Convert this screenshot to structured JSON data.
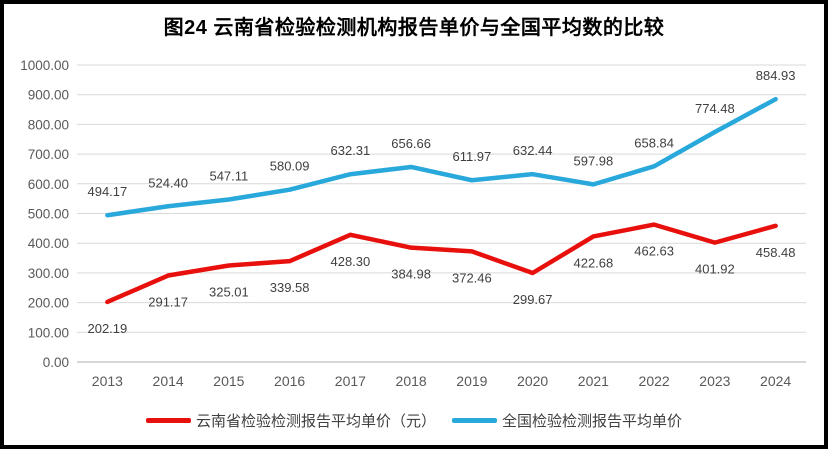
{
  "chart_data": {
    "type": "line",
    "title": "图24 云南省检验检测机构报告单价与全国平均数的比较",
    "categories": [
      "2013",
      "2014",
      "2015",
      "2016",
      "2017",
      "2018",
      "2019",
      "2020",
      "2021",
      "2022",
      "2023",
      "2024"
    ],
    "series": [
      {
        "name": "云南省检验检测报告平均单价（元）",
        "color": "#e8100c",
        "label_position": "below",
        "values": [
          202.19,
          291.17,
          325.01,
          339.58,
          428.3,
          384.98,
          372.46,
          299.67,
          422.68,
          462.63,
          401.92,
          458.48
        ]
      },
      {
        "name": "全国检验检测报告平均单价",
        "color": "#29a8dc",
        "label_position": "above",
        "values": [
          494.17,
          524.4,
          547.11,
          580.09,
          632.31,
          656.66,
          611.97,
          632.44,
          597.98,
          658.84,
          774.48,
          884.93
        ]
      }
    ],
    "xlabel": "",
    "ylabel": "",
    "ylim": [
      0,
      1000
    ],
    "yticks": [
      0,
      100,
      200,
      300,
      400,
      500,
      600,
      700,
      800,
      900,
      1000
    ],
    "ytick_decimals": 2,
    "grid": true,
    "legend_position": "bottom",
    "data_labels": true
  }
}
